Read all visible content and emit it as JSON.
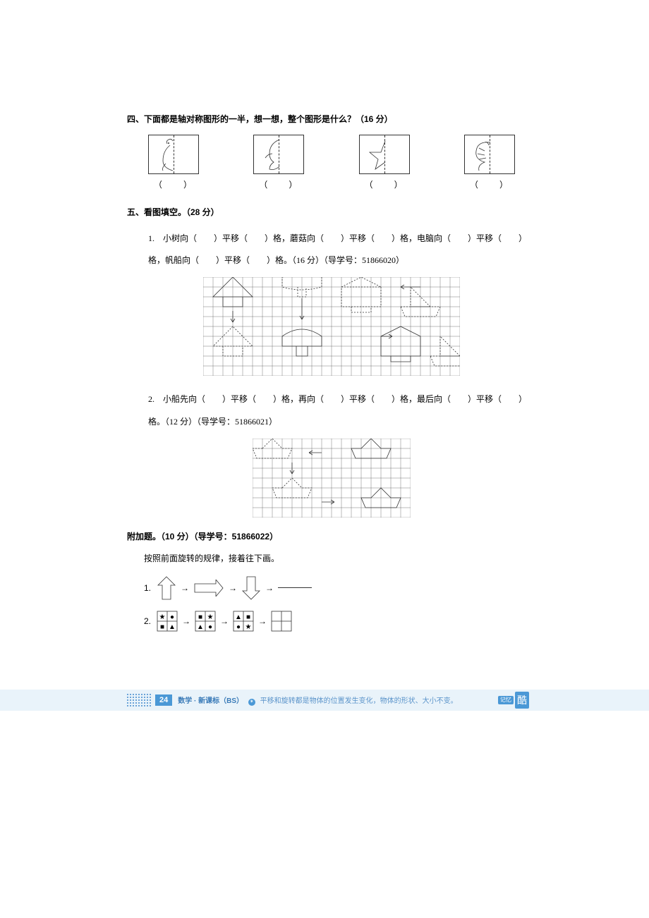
{
  "section4": {
    "heading": "四、下面都是轴对称图形的一半，想一想，整个图形是什么？（16 分）",
    "answers": [
      "（　　）",
      "（　　）",
      "（　　）",
      "（　　）"
    ]
  },
  "section5": {
    "heading": "五、看图填空。（28 分）",
    "q1_line1": "1.　小树向（　　）平移（　　）格，蘑菇向（　　）平移（　　）格，电脑向（　　）平移（　　）",
    "q1_line2": "格，帆船向（　　）平移（　　）格。（16 分）（导学号：51866020）",
    "q2_line1": "2.　小船先向（　　）平移（　　）格，再向（　　）平移（　　）格，最后向（　　）平移（　　）",
    "q2_line2": "格。（12 分）（导学号：51866021）"
  },
  "bonus": {
    "heading": "附加题。（10 分）（导学号：51866022）",
    "instruction": "按照前面旋转的规律，接着往下画。",
    "row1": "1.",
    "row2": "2."
  },
  "footer": {
    "page": "24",
    "subject": "数学 · 新课标（BS）",
    "tip": "平移和旋转都是物体的位置发生变化，物体的形状、大小不变。",
    "ku1": "记忆",
    "ku2": "酷"
  },
  "grid1": {
    "rows": 10,
    "cols": 26,
    "cell": 14
  },
  "grid2": {
    "rows": 8,
    "cols": 16,
    "cell": 14
  }
}
